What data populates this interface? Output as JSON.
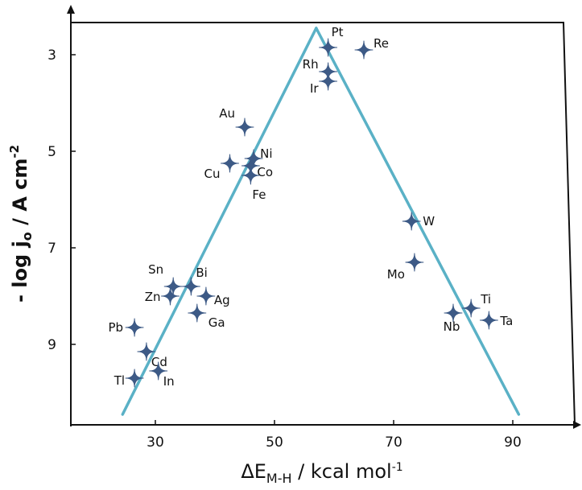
{
  "chart_data": {
    "type": "scatter",
    "title": "",
    "xlabel": "ΔE_M-H / kcal mol⁻¹",
    "ylabel": "- log j_o / A cm⁻²",
    "xlim": [
      15,
      100
    ],
    "ylim": [
      2.4,
      10.7
    ],
    "y_inverted": true,
    "x_ticks": [
      30,
      50,
      70,
      90
    ],
    "y_ticks": [
      3,
      5,
      7,
      9
    ],
    "grid": false,
    "legend": "none",
    "colors": {
      "marker": "#3d5a86",
      "line": "#5ab1c6",
      "axis": "#111111"
    },
    "points": [
      {
        "label": "Pt",
        "x": 59,
        "y": 2.85
      },
      {
        "label": "Re",
        "x": 65,
        "y": 2.9
      },
      {
        "label": "Rh",
        "x": 59,
        "y": 3.35
      },
      {
        "label": "Ir",
        "x": 59,
        "y": 3.55
      },
      {
        "label": "Au",
        "x": 45,
        "y": 4.5
      },
      {
        "label": "Ni",
        "x": 46.5,
        "y": 5.15
      },
      {
        "label": "Cu",
        "x": 42.5,
        "y": 5.25
      },
      {
        "label": "Co",
        "x": 46,
        "y": 5.3
      },
      {
        "label": "Fe",
        "x": 46,
        "y": 5.5
      },
      {
        "label": "W",
        "x": 73,
        "y": 6.45
      },
      {
        "label": "Mo",
        "x": 73.5,
        "y": 7.3
      },
      {
        "label": "Bi",
        "x": 36,
        "y": 7.8
      },
      {
        "label": "Sn",
        "x": 33,
        "y": 7.8
      },
      {
        "label": "Zn",
        "x": 32.5,
        "y": 8.0
      },
      {
        "label": "Ag",
        "x": 38.5,
        "y": 8.0
      },
      {
        "label": "Ti",
        "x": 83,
        "y": 8.25
      },
      {
        "label": "Ga",
        "x": 37,
        "y": 8.35
      },
      {
        "label": "Nb",
        "x": 80,
        "y": 8.35
      },
      {
        "label": "Ta",
        "x": 86,
        "y": 8.5
      },
      {
        "label": "Pb",
        "x": 26.5,
        "y": 8.65
      },
      {
        "label": "Cd",
        "x": 28.5,
        "y": 9.15
      },
      {
        "label": "In",
        "x": 30.5,
        "y": 9.55
      },
      {
        "label": "Tl",
        "x": 26.5,
        "y": 9.7
      }
    ],
    "trend_lines": [
      {
        "from": [
          24.5,
          10.45
        ],
        "to": [
          57,
          2.45
        ]
      },
      {
        "from": [
          57,
          2.45
        ],
        "to": [
          91,
          10.45
        ]
      }
    ]
  }
}
